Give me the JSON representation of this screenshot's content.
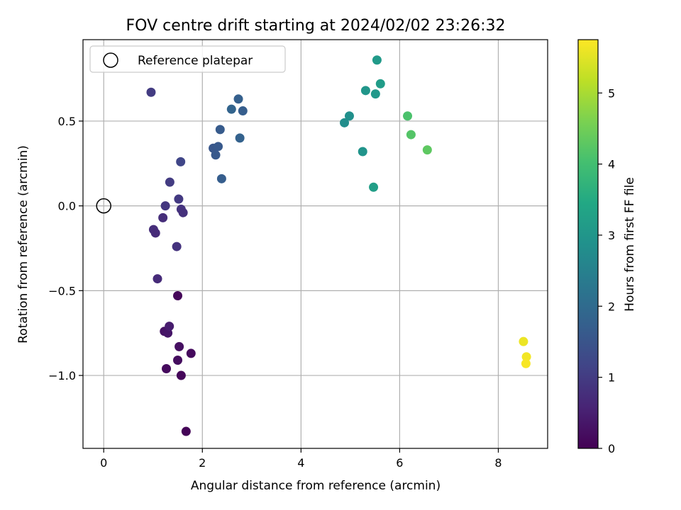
{
  "chart_data": {
    "type": "scatter",
    "title": "FOV centre drift starting at 2024/02/02 23:26:32",
    "xlabel": "Angular distance from reference (arcmin)",
    "ylabel": "Rotation from reference (arcmin)",
    "xlim": [
      -0.42,
      9.0
    ],
    "ylim": [
      -1.43,
      0.98
    ],
    "xticks": [
      0,
      2,
      4,
      6,
      8
    ],
    "xtick_labels": [
      "0",
      "2",
      "4",
      "6",
      "8"
    ],
    "yticks": [
      -1.0,
      -0.5,
      0.0,
      0.5
    ],
    "ytick_labels": [
      "−1.0",
      "−0.5",
      "0.0",
      "0.5"
    ],
    "grid": true,
    "legend": {
      "placement": "top-left",
      "entries": [
        "Reference platepar"
      ]
    },
    "colorbar": {
      "label": "Hours from first FF file",
      "colormap": "viridis",
      "range": [
        0,
        5.75
      ],
      "ticks": [
        0,
        1,
        2,
        3,
        4,
        5
      ],
      "tick_labels": [
        "0",
        "1",
        "2",
        "3",
        "4",
        "5"
      ]
    },
    "reference_point": {
      "x": 0.0,
      "y": 0.0,
      "label": "Reference platepar"
    },
    "points": [
      {
        "x": 1.67,
        "y": -1.33,
        "hours": 0.05
      },
      {
        "x": 1.57,
        "y": -1.0,
        "hours": 0.1
      },
      {
        "x": 1.27,
        "y": -0.96,
        "hours": 0.15
      },
      {
        "x": 1.5,
        "y": -0.91,
        "hours": 0.2
      },
      {
        "x": 1.77,
        "y": -0.87,
        "hours": 0.15
      },
      {
        "x": 1.53,
        "y": -0.83,
        "hours": 0.25
      },
      {
        "x": 1.23,
        "y": -0.74,
        "hours": 0.3
      },
      {
        "x": 1.3,
        "y": -0.75,
        "hours": 0.35
      },
      {
        "x": 1.33,
        "y": -0.71,
        "hours": 0.45
      },
      {
        "x": 1.5,
        "y": -0.53,
        "hours": 0.1
      },
      {
        "x": 1.09,
        "y": -0.43,
        "hours": 0.7
      },
      {
        "x": 1.48,
        "y": -0.24,
        "hours": 0.85
      },
      {
        "x": 1.01,
        "y": -0.14,
        "hours": 0.75
      },
      {
        "x": 1.05,
        "y": -0.16,
        "hours": 0.7
      },
      {
        "x": 1.2,
        "y": -0.07,
        "hours": 0.75
      },
      {
        "x": 1.25,
        "y": 0.0,
        "hours": 0.9
      },
      {
        "x": 1.57,
        "y": -0.02,
        "hours": 0.85
      },
      {
        "x": 1.61,
        "y": -0.04,
        "hours": 0.8
      },
      {
        "x": 1.52,
        "y": 0.04,
        "hours": 0.95
      },
      {
        "x": 1.34,
        "y": 0.14,
        "hours": 1.0
      },
      {
        "x": 1.56,
        "y": 0.26,
        "hours": 1.2
      },
      {
        "x": 0.96,
        "y": 0.67,
        "hours": 1.0
      },
      {
        "x": 2.22,
        "y": 0.34,
        "hours": 1.55
      },
      {
        "x": 2.27,
        "y": 0.3,
        "hours": 1.6
      },
      {
        "x": 2.32,
        "y": 0.35,
        "hours": 1.6
      },
      {
        "x": 2.36,
        "y": 0.45,
        "hours": 1.65
      },
      {
        "x": 2.39,
        "y": 0.16,
        "hours": 1.7
      },
      {
        "x": 2.59,
        "y": 0.57,
        "hours": 1.85
      },
      {
        "x": 2.73,
        "y": 0.63,
        "hours": 1.75
      },
      {
        "x": 2.82,
        "y": 0.56,
        "hours": 1.7
      },
      {
        "x": 2.76,
        "y": 0.4,
        "hours": 1.8
      },
      {
        "x": 4.88,
        "y": 0.49,
        "hours": 2.8
      },
      {
        "x": 4.98,
        "y": 0.53,
        "hours": 2.85
      },
      {
        "x": 5.25,
        "y": 0.32,
        "hours": 2.95
      },
      {
        "x": 5.31,
        "y": 0.68,
        "hours": 3.0
      },
      {
        "x": 5.51,
        "y": 0.66,
        "hours": 3.05
      },
      {
        "x": 5.54,
        "y": 0.86,
        "hours": 3.1
      },
      {
        "x": 5.61,
        "y": 0.72,
        "hours": 3.15
      },
      {
        "x": 5.47,
        "y": 0.11,
        "hours": 3.2
      },
      {
        "x": 6.16,
        "y": 0.53,
        "hours": 4.1
      },
      {
        "x": 6.23,
        "y": 0.42,
        "hours": 4.2
      },
      {
        "x": 6.56,
        "y": 0.33,
        "hours": 4.3
      },
      {
        "x": 8.51,
        "y": -0.8,
        "hours": 5.6
      },
      {
        "x": 8.57,
        "y": -0.89,
        "hours": 5.65
      },
      {
        "x": 8.56,
        "y": -0.93,
        "hours": 5.7
      }
    ]
  }
}
